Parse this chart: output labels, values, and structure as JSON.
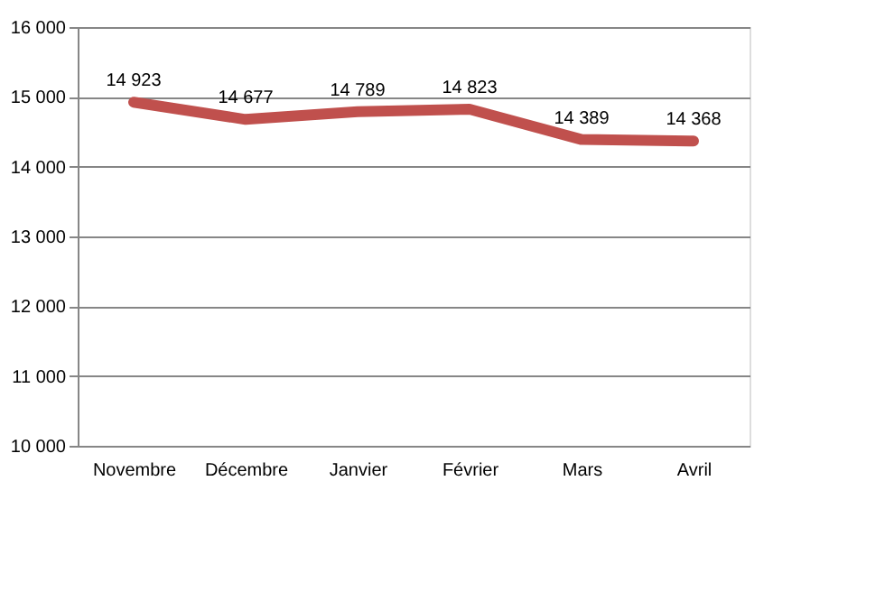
{
  "chart_data": {
    "type": "line",
    "categories": [
      "Novembre",
      "Décembre",
      "Janvier",
      "Février",
      "Mars",
      "Avril"
    ],
    "series": [
      {
        "color": "#c0504d",
        "values": [
          14923,
          14677,
          14789,
          14823,
          14389,
          14368
        ],
        "value_labels": [
          "14 923",
          "14 677",
          "14 789",
          "14 823",
          "14 389",
          "14 368"
        ]
      }
    ],
    "ylim": [
      10000,
      16000
    ],
    "yticks": [
      {
        "value": 10000,
        "label": "10 000"
      },
      {
        "value": 11000,
        "label": "11 000"
      },
      {
        "value": 12000,
        "label": "12 000"
      },
      {
        "value": 13000,
        "label": "13 000"
      },
      {
        "value": 14000,
        "label": "14 000"
      },
      {
        "value": 15000,
        "label": "15 000"
      },
      {
        "value": 16000,
        "label": "16 000"
      }
    ],
    "grid": "y",
    "marker": "none",
    "line_style": "solid"
  }
}
